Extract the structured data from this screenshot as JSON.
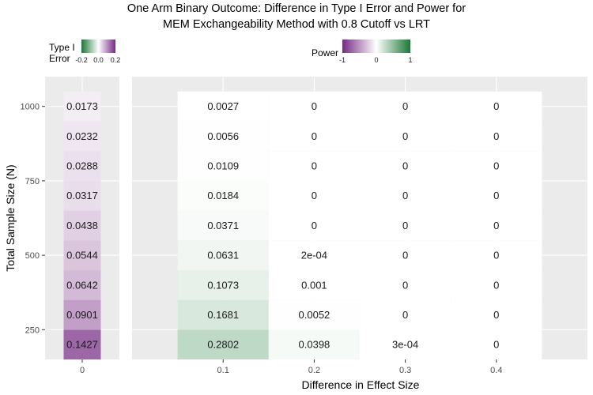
{
  "chart_data": {
    "type": "heatmap",
    "title_line1": "One Arm Binary Outcome: Difference in Type I Error and Power for",
    "title_line2": "MEM Exchangeability Method with 0.8 Cutoff vs LRT",
    "ylabel": "Total Sample Size (N)",
    "xlabel": "Difference in Effect Size",
    "y_ticks": [
      250,
      500,
      750,
      1000
    ],
    "y_range": [
      150,
      1100
    ],
    "y_values": [
      200,
      300,
      400,
      500,
      600,
      700,
      800,
      900,
      1000
    ],
    "type1_panel": {
      "x_categories": [
        "0"
      ],
      "values": [
        0.1427,
        0.0901,
        0.0642,
        0.0544,
        0.0438,
        0.0317,
        0.0288,
        0.0232,
        0.0173
      ],
      "labels": [
        "0.1427",
        "0.0901",
        "0.0642",
        "0.0544",
        "0.0438",
        "0.0317",
        "0.0288",
        "0.0232",
        "0.0173"
      ]
    },
    "power_panel": {
      "x_categories": [
        "0.1",
        "0.2",
        "0.3",
        "0.4"
      ],
      "series": [
        {
          "x": "0.1",
          "values": [
            0.2802,
            0.1681,
            0.1073,
            0.0631,
            0.0371,
            0.0184,
            0.0109,
            0.0056,
            0.0027
          ],
          "labels": [
            "0.2802",
            "0.1681",
            "0.1073",
            "0.0631",
            "0.0371",
            "0.0184",
            "0.0109",
            "0.0056",
            "0.0027"
          ]
        },
        {
          "x": "0.2",
          "values": [
            0.0398,
            0.0052,
            0.001,
            0.0002,
            0,
            0,
            0,
            0,
            0
          ],
          "labels": [
            "0.0398",
            "0.0052",
            "0.001",
            "2e-04",
            "0",
            "0",
            "0",
            "0",
            "0"
          ]
        },
        {
          "x": "0.3",
          "values": [
            0.0003,
            0,
            0,
            0,
            0,
            0,
            0,
            0,
            0
          ],
          "labels": [
            "3e-04",
            "0",
            "0",
            "0",
            "0",
            "0",
            "0",
            "0",
            "0"
          ]
        },
        {
          "x": "0.4",
          "values": [
            0,
            0,
            0,
            0,
            0,
            0,
            0,
            0,
            0
          ],
          "labels": [
            "0",
            "0",
            "0",
            "0",
            "0",
            "0",
            "0",
            "0",
            "0"
          ]
        }
      ]
    },
    "legend_type1": {
      "title_line1": "Type I",
      "title_line2": "Error",
      "range": [
        -0.2,
        0.2
      ],
      "tick_labels": [
        "-0.2",
        "0.0",
        "0.2"
      ],
      "low_color": "#1b7837",
      "high_color": "#762a83"
    },
    "legend_power": {
      "title": "Power",
      "range": [
        -1,
        1
      ],
      "tick_labels": [
        "-1",
        "0",
        "1"
      ],
      "low_color": "#762a83",
      "high_color": "#1b7837"
    },
    "colors": {
      "panel_bg": "#ebebeb",
      "grid": "#ffffff",
      "mid": "#ffffff"
    },
    "legend_placement": "top"
  }
}
